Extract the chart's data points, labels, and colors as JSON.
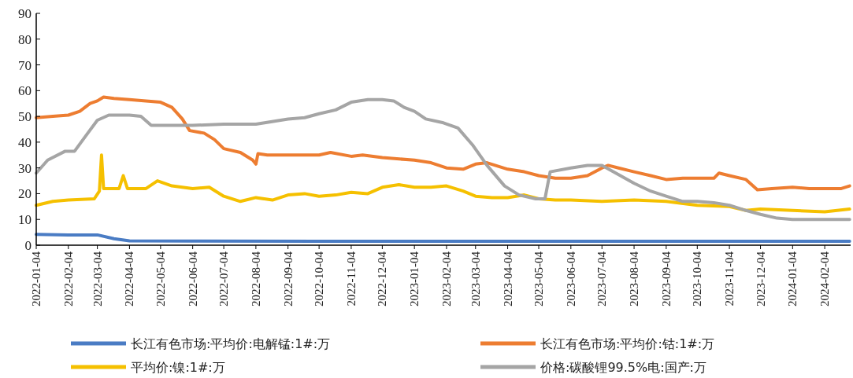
{
  "chart_data": {
    "type": "line",
    "legend": "bottom",
    "line_style": "solid",
    "marker": "none",
    "ylim": [
      0,
      90
    ],
    "yticks": [
      0,
      10,
      20,
      30,
      40,
      50,
      60,
      70,
      80,
      90
    ],
    "xlim": [
      "2022-01-04",
      "2024-02-29"
    ],
    "xticks": [
      "2022-01-04",
      "2022-02-04",
      "2022-03-04",
      "2022-04-04",
      "2022-05-04",
      "2022-06-04",
      "2022-07-04",
      "2022-08-04",
      "2022-09-04",
      "2022-10-04",
      "2022-11-04",
      "2022-12-04",
      "2023-01-04",
      "2023-02-04",
      "2023-03-04",
      "2023-04-04",
      "2023-05-04",
      "2023-06-04",
      "2023-07-04",
      "2023-08-04",
      "2023-09-04",
      "2023-10-04",
      "2023-11-04",
      "2023-12-04",
      "2024-01-04",
      "2024-02-04"
    ],
    "series": [
      {
        "name": "长江有色市场:平均价:电解锰:1#:万",
        "color": "#4a7cc4",
        "x": [
          "2022-01-04",
          "2022-02-04",
          "2022-03-04",
          "2022-03-20",
          "2022-04-04",
          "2022-06-04",
          "2022-10-04",
          "2023-03-04",
          "2023-08-04",
          "2024-01-04",
          "2024-02-28"
        ],
        "values": [
          4.2,
          4,
          4,
          2.5,
          1.7,
          1.6,
          1.5,
          1.5,
          1.5,
          1.5,
          1.5
        ]
      },
      {
        "name": "长江有色市场:平均价:钴:1#:万",
        "color": "#ed7d31",
        "x": [
          "2022-01-04",
          "2022-01-20",
          "2022-02-04",
          "2022-02-15",
          "2022-02-25",
          "2022-03-04",
          "2022-03-10",
          "2022-03-20",
          "2022-04-04",
          "2022-04-20",
          "2022-05-04",
          "2022-05-15",
          "2022-05-25",
          "2022-06-01",
          "2022-06-15",
          "2022-06-25",
          "2022-07-04",
          "2022-07-20",
          "2022-08-01",
          "2022-08-04",
          "2022-08-06",
          "2022-08-15",
          "2022-09-04",
          "2022-10-04",
          "2022-10-15",
          "2022-11-04",
          "2022-11-15",
          "2022-12-04",
          "2023-01-04",
          "2023-01-20",
          "2023-02-04",
          "2023-02-20",
          "2023-03-04",
          "2023-03-15",
          "2023-04-04",
          "2023-04-20",
          "2023-05-04",
          "2023-05-20",
          "2023-06-04",
          "2023-06-20",
          "2023-07-04",
          "2023-07-10",
          "2023-07-20",
          "2023-08-04",
          "2023-08-20",
          "2023-09-04",
          "2023-09-20",
          "2023-10-04",
          "2023-10-20",
          "2023-10-25",
          "2023-11-04",
          "2023-11-20",
          "2023-12-01",
          "2023-12-15",
          "2024-01-04",
          "2024-01-20",
          "2024-02-04",
          "2024-02-20",
          "2024-02-28"
        ],
        "values": [
          49.5,
          50,
          50.5,
          52,
          55,
          56,
          57.5,
          57,
          56.5,
          56,
          55.5,
          53.5,
          49,
          44.5,
          43.5,
          41,
          37.5,
          36,
          33,
          31.5,
          35.5,
          35,
          35,
          35,
          36,
          34.5,
          35,
          34,
          33,
          32,
          30,
          29.5,
          31.5,
          32,
          29.5,
          28.5,
          27,
          26,
          26,
          27,
          30,
          31,
          30,
          28.5,
          27,
          25.5,
          26,
          26,
          26,
          28,
          27,
          25.5,
          21.5,
          22,
          22.5,
          22,
          22,
          22,
          23
        ]
      },
      {
        "name": "平均价:镍:1#:万",
        "color": "#f5c000",
        "x": [
          "2022-01-04",
          "2022-01-20",
          "2022-02-04",
          "2022-03-01",
          "2022-03-06",
          "2022-03-08",
          "2022-03-10",
          "2022-03-25",
          "2022-03-29",
          "2022-04-02",
          "2022-04-20",
          "2022-05-01",
          "2022-05-15",
          "2022-06-04",
          "2022-06-20",
          "2022-07-04",
          "2022-07-20",
          "2022-08-04",
          "2022-08-20",
          "2022-09-04",
          "2022-09-20",
          "2022-10-04",
          "2022-10-20",
          "2022-11-04",
          "2022-11-20",
          "2022-12-04",
          "2022-12-20",
          "2023-01-04",
          "2023-01-20",
          "2023-02-04",
          "2023-02-20",
          "2023-03-04",
          "2023-03-20",
          "2023-04-04",
          "2023-04-20",
          "2023-05-04",
          "2023-05-20",
          "2023-06-04",
          "2023-07-04",
          "2023-08-04",
          "2023-09-04",
          "2023-10-04",
          "2023-11-04",
          "2023-11-20",
          "2023-12-04",
          "2024-01-04",
          "2024-02-04",
          "2024-02-28"
        ],
        "values": [
          15.5,
          17,
          17.5,
          18,
          21,
          35,
          22,
          22,
          27,
          22,
          22,
          25,
          23,
          22,
          22.5,
          19,
          17,
          18.5,
          17.5,
          19.5,
          20,
          19,
          19.5,
          20.5,
          20,
          22.5,
          23.5,
          22.5,
          22.5,
          23,
          21,
          19,
          18.5,
          18.5,
          19.5,
          18,
          17.5,
          17.5,
          17,
          17.5,
          17,
          15.5,
          15,
          13.5,
          14,
          13.5,
          13,
          14
        ]
      },
      {
        "name": "价格:碳酸锂99.5%电:国产:万",
        "color": "#a5a5a5",
        "x": [
          "2022-01-04",
          "2022-01-15",
          "2022-02-01",
          "2022-02-10",
          "2022-02-20",
          "2022-03-04",
          "2022-03-15",
          "2022-04-04",
          "2022-04-15",
          "2022-04-25",
          "2022-05-15",
          "2022-06-04",
          "2022-07-04",
          "2022-08-04",
          "2022-09-04",
          "2022-09-20",
          "2022-10-04",
          "2022-10-20",
          "2022-11-04",
          "2022-11-20",
          "2022-12-04",
          "2022-12-15",
          "2022-12-25",
          "2023-01-04",
          "2023-01-15",
          "2023-02-01",
          "2023-02-15",
          "2023-03-01",
          "2023-03-15",
          "2023-04-01",
          "2023-04-15",
          "2023-05-01",
          "2023-05-10",
          "2023-05-15",
          "2023-06-04",
          "2023-06-20",
          "2023-07-04",
          "2023-07-15",
          "2023-08-04",
          "2023-08-20",
          "2023-09-04",
          "2023-09-20",
          "2023-10-04",
          "2023-10-20",
          "2023-11-04",
          "2023-11-20",
          "2023-12-04",
          "2023-12-20",
          "2024-01-04",
          "2024-02-04",
          "2024-02-28"
        ],
        "values": [
          28,
          33,
          36.5,
          36.5,
          42,
          48.5,
          50.5,
          50.5,
          50,
          46.5,
          46.5,
          46.5,
          47,
          47,
          49,
          49.5,
          51,
          52.5,
          55.5,
          56.5,
          56.5,
          56,
          53.5,
          52,
          49,
          47.5,
          45.5,
          39,
          31,
          23,
          19.5,
          18,
          18,
          28.5,
          30,
          31,
          31,
          28.5,
          24,
          21,
          19,
          17,
          17,
          16.5,
          15.5,
          13.5,
          12,
          10.5,
          10,
          10,
          10
        ]
      }
    ]
  }
}
